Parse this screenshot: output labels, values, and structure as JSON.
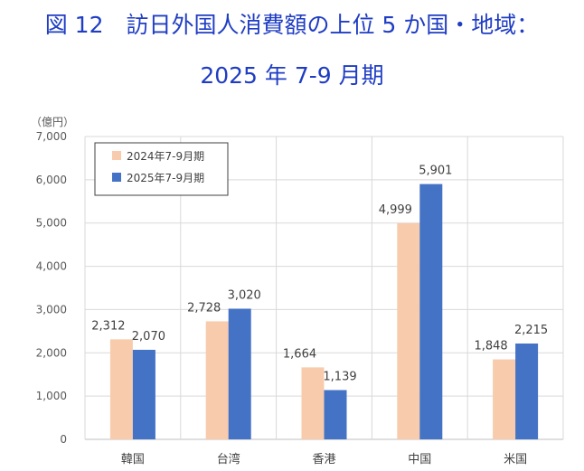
{
  "title_line1": "図 12　訪日外国人消費額の上位 5 か国・地域：",
  "title_line2": "2025 年 7-9 月期",
  "chart_data": {
    "type": "bar",
    "title": "図 12　訪日外国人消費額の上位 5 か国・地域： 2025 年 7-9 月期",
    "ylabel": "（億円）",
    "xlabel": "",
    "ylim": [
      0,
      7000
    ],
    "yticks": [
      0,
      1000,
      2000,
      3000,
      4000,
      5000,
      6000,
      7000
    ],
    "ytick_labels": [
      "0",
      "1,000",
      "2,000",
      "3,000",
      "4,000",
      "5,000",
      "6,000",
      "7,000"
    ],
    "categories": [
      "韓国",
      "台湾",
      "香港",
      "中国",
      "米国"
    ],
    "series": [
      {
        "name": "2024年7-9月期",
        "color": "#f8cbad",
        "values": [
          2312,
          2728,
          1664,
          4999,
          1848
        ],
        "labels": [
          "2,312",
          "2,728",
          "1,664",
          "4,999",
          "1,848"
        ]
      },
      {
        "name": "2025年7-9月期",
        "color": "#4472c4",
        "values": [
          2070,
          3020,
          1139,
          5901,
          2215
        ],
        "labels": [
          "2,070",
          "3,020",
          "1,139",
          "5,901",
          "2,215"
        ]
      }
    ],
    "grid": true,
    "legend_position": "top-left"
  }
}
